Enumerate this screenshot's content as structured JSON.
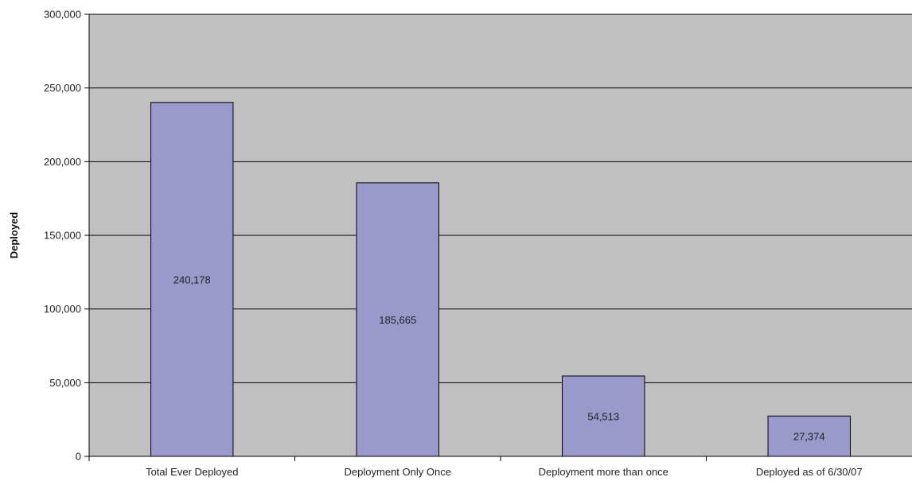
{
  "chart_data": {
    "type": "bar",
    "title": "",
    "xlabel": "",
    "ylabel": "Deployed",
    "categories": [
      "Total Ever Deployed",
      "Deployment Only Once",
      "Deployment more than once",
      "Deployed as of 6/30/07"
    ],
    "values": [
      240178,
      185665,
      54513,
      27374
    ],
    "data_labels": [
      "240,178",
      "185,665",
      "54,513",
      "27,374"
    ],
    "ylim": [
      0,
      300000
    ],
    "yticks": [
      0,
      50000,
      100000,
      150000,
      200000,
      250000,
      300000
    ],
    "ytick_labels": [
      "0",
      "50,000",
      "100,000",
      "150,000",
      "200,000",
      "250,000",
      "300,000"
    ],
    "grid": true,
    "legend": "none",
    "colors": {
      "plot_background": "#c0c0c0",
      "bar_fill": "#9999cc",
      "bar_stroke": "#000000",
      "gridline": "#000000"
    }
  }
}
